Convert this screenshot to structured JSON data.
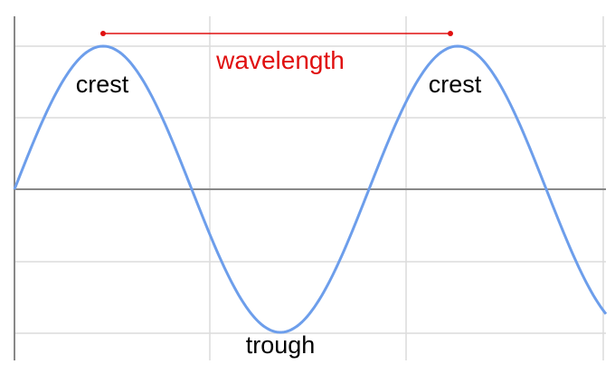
{
  "labels": {
    "wavelength": "wavelength",
    "crest_left": "crest",
    "crest_right": "crest",
    "trough": "trough"
  },
  "colors": {
    "wave": "#6d9eeb",
    "wavelength": "#e01010",
    "grid": "#dcdcdc",
    "axis": "#888888"
  }
}
